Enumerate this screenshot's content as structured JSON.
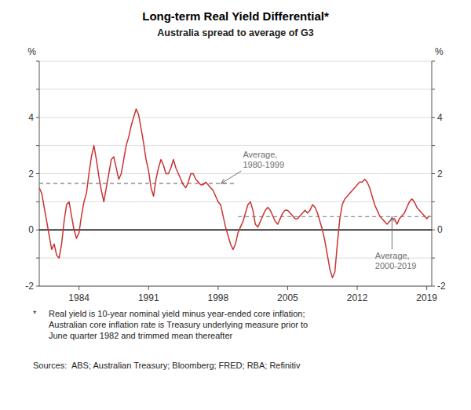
{
  "chart_data": {
    "type": "line",
    "title": "Long-term Real Yield Differential*",
    "subtitle": "Australia spread to average of G3",
    "ylabel": "%",
    "y2label": "%",
    "color": "#cc3333",
    "grid": true,
    "xlim": [
      1980,
      2019.5
    ],
    "xticks": [
      1984,
      1991,
      1998,
      2005,
      2012,
      2019
    ],
    "ylim": [
      -2,
      6
    ],
    "yticks": [
      -2,
      {
        "value": -1,
        "label": null
      },
      0,
      {
        "value": 1,
        "label": null
      },
      2,
      {
        "value": 3,
        "label": null
      },
      4,
      {
        "value": 5,
        "label": null
      },
      {
        "value": 6,
        "label": null
      }
    ],
    "x": [
      1980.0,
      1980.25,
      1980.5,
      1980.75,
      1981.0,
      1981.25,
      1981.5,
      1981.75,
      1982.0,
      1982.25,
      1982.5,
      1982.75,
      1983.0,
      1983.25,
      1983.5,
      1983.75,
      1984.0,
      1984.25,
      1984.5,
      1984.75,
      1985.0,
      1985.25,
      1985.5,
      1985.75,
      1986.0,
      1986.25,
      1986.5,
      1986.75,
      1987.0,
      1987.25,
      1987.5,
      1987.75,
      1988.0,
      1988.25,
      1988.5,
      1988.75,
      1989.0,
      1989.25,
      1989.5,
      1989.75,
      1990.0,
      1990.25,
      1990.5,
      1990.75,
      1991.0,
      1991.25,
      1991.5,
      1991.75,
      1992.0,
      1992.25,
      1992.5,
      1992.75,
      1993.0,
      1993.25,
      1993.5,
      1993.75,
      1994.0,
      1994.25,
      1994.5,
      1994.75,
      1995.0,
      1995.25,
      1995.5,
      1995.75,
      1996.0,
      1996.25,
      1996.5,
      1996.75,
      1997.0,
      1997.25,
      1997.5,
      1997.75,
      1998.0,
      1998.25,
      1998.5,
      1998.75,
      1999.0,
      1999.25,
      1999.5,
      1999.75,
      2000.0,
      2000.25,
      2000.5,
      2000.75,
      2001.0,
      2001.25,
      2001.5,
      2001.75,
      2002.0,
      2002.25,
      2002.5,
      2002.75,
      2003.0,
      2003.25,
      2003.5,
      2003.75,
      2004.0,
      2004.25,
      2004.5,
      2004.75,
      2005.0,
      2005.25,
      2005.5,
      2005.75,
      2006.0,
      2006.25,
      2006.5,
      2006.75,
      2007.0,
      2007.25,
      2007.5,
      2007.75,
      2008.0,
      2008.25,
      2008.5,
      2008.75,
      2009.0,
      2009.25,
      2009.5,
      2009.75,
      2010.0,
      2010.25,
      2010.5,
      2010.75,
      2011.0,
      2011.25,
      2011.5,
      2011.75,
      2012.0,
      2012.25,
      2012.5,
      2012.75,
      2013.0,
      2013.25,
      2013.5,
      2013.75,
      2014.0,
      2014.25,
      2014.5,
      2014.75,
      2015.0,
      2015.25,
      2015.5,
      2015.75,
      2016.0,
      2016.25,
      2016.5,
      2016.75,
      2017.0,
      2017.25,
      2017.5,
      2017.75,
      2018.0,
      2018.25,
      2018.5,
      2018.75,
      2019.0,
      2019.25
    ],
    "values": [
      1.5,
      1.3,
      0.8,
      0.3,
      -0.2,
      -0.7,
      -0.5,
      -0.9,
      -1.0,
      -0.5,
      0.3,
      0.9,
      1.0,
      0.5,
      0.0,
      -0.3,
      -0.1,
      0.5,
      1.0,
      1.3,
      2.0,
      2.6,
      3.0,
      2.5,
      1.9,
      1.4,
      1.0,
      1.5,
      2.0,
      2.5,
      2.6,
      2.2,
      1.8,
      2.0,
      2.5,
      3.0,
      3.3,
      3.7,
      4.0,
      4.3,
      4.1,
      3.6,
      3.1,
      2.5,
      2.1,
      1.5,
      1.2,
      1.8,
      2.2,
      2.5,
      2.3,
      2.0,
      2.0,
      2.2,
      2.5,
      2.2,
      2.0,
      1.8,
      1.6,
      1.5,
      1.7,
      2.0,
      2.0,
      1.8,
      1.7,
      1.6,
      1.6,
      1.7,
      1.6,
      1.5,
      1.4,
      1.2,
      1.0,
      0.9,
      0.5,
      0.1,
      -0.2,
      -0.5,
      -0.7,
      -0.5,
      -0.1,
      0.1,
      0.3,
      0.6,
      0.9,
      1.0,
      0.7,
      0.2,
      0.1,
      0.3,
      0.5,
      0.7,
      0.8,
      0.7,
      0.5,
      0.3,
      0.2,
      0.4,
      0.6,
      0.7,
      0.7,
      0.6,
      0.5,
      0.4,
      0.4,
      0.5,
      0.6,
      0.7,
      0.6,
      0.7,
      0.9,
      0.8,
      0.6,
      0.3,
      0.0,
      -0.4,
      -0.9,
      -1.4,
      -1.7,
      -1.5,
      -0.5,
      0.4,
      0.9,
      1.1,
      1.2,
      1.3,
      1.4,
      1.5,
      1.6,
      1.7,
      1.7,
      1.8,
      1.7,
      1.5,
      1.2,
      0.9,
      0.7,
      0.5,
      0.4,
      0.3,
      0.2,
      0.3,
      0.4,
      0.4,
      0.2,
      0.4,
      0.5,
      0.6,
      0.8,
      1.0,
      1.1,
      1.0,
      0.8,
      0.7,
      0.6,
      0.5,
      0.4,
      0.5
    ],
    "reference_lines": [
      {
        "value": 1.65,
        "x": [
          1980.0,
          1999.75
        ],
        "label": "Average,\n1980-1999",
        "label_x": 2000.5,
        "label_y": 2.85,
        "arrow_x": 1998.3,
        "color": "#909090",
        "line_style": "dashed"
      },
      {
        "value": 0.47,
        "x": [
          2000.0,
          2019.5
        ],
        "label": "Average,\n2000-2019",
        "label_x": 2013.8,
        "label_y": -0.75,
        "arrow_x": 2015.5,
        "color": "#909090",
        "line_style": "dashed"
      }
    ],
    "footnote_marker": "*",
    "footnote": "Real yield is 10-year nominal yield minus year-ended core inflation;\nAustralian core inflation rate is Treasury underlying measure prior to\nJune quarter 1982 and trimmed mean thereafter",
    "sources": "Sources:  ABS; Australian Treasury; Bloomberg; FRED; RBA; Refinitiv"
  }
}
